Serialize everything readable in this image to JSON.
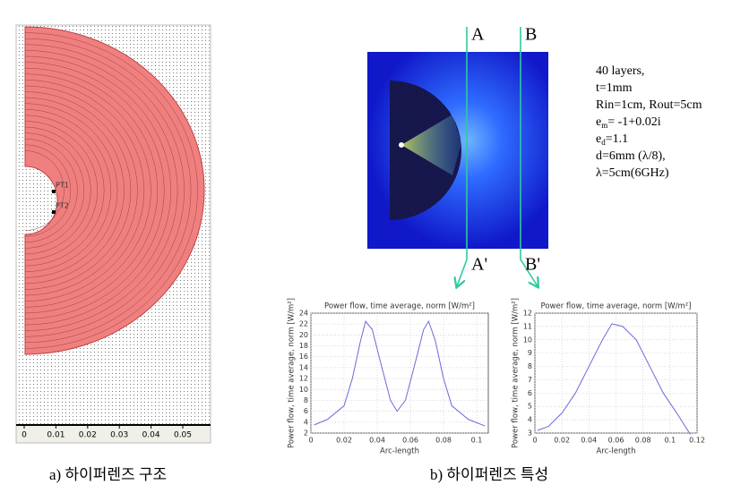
{
  "figure": {
    "geometry": {
      "points": [
        "PT1",
        "PT2"
      ],
      "xticks": [
        0,
        0.01,
        0.02,
        0.03,
        0.04,
        0.05
      ]
    },
    "section_labels": [
      "A",
      "B",
      "A'",
      "B'"
    ],
    "parameters": [
      {
        "text": "40 layers,"
      },
      {
        "text": "t=1mm"
      },
      {
        "text": "Rin=1cm, Rout=5cm"
      },
      {
        "text": "e",
        "sub": "m",
        "rest": "= -1+0.02i"
      },
      {
        "text": "e",
        "sub": "d",
        "rest": "=1.1"
      },
      {
        "text": "d=6mm (λ/8),"
      },
      {
        "text": "λ=5cm(6GHz)"
      }
    ],
    "captions": [
      "a) 하이퍼렌즈 구조",
      "b) 하이퍼렌즈 특성"
    ]
  },
  "chart_data": [
    {
      "type": "line",
      "title": "Power flow, time average, norm [W/m²]",
      "ylabel": "Power flow, time average, norm [W/m²]",
      "xlabel": "Arc-length",
      "color": "#6a6ad8",
      "x": [
        0.002,
        0.01,
        0.02,
        0.025,
        0.03,
        0.033,
        0.037,
        0.042,
        0.048,
        0.052,
        0.057,
        0.063,
        0.068,
        0.071,
        0.075,
        0.08,
        0.085,
        0.095,
        0.105
      ],
      "values": [
        3.5,
        4.5,
        7,
        12,
        19,
        22.5,
        21,
        15,
        8,
        6,
        8,
        15,
        21,
        22.5,
        19,
        12,
        7,
        4.5,
        3.3
      ],
      "xlim": [
        0,
        0.107
      ],
      "xticks": [
        0,
        0.02,
        0.04,
        0.06,
        0.08,
        0.1
      ],
      "ylim": [
        2,
        24
      ],
      "yticks": [
        2,
        4,
        6,
        8,
        10,
        12,
        14,
        16,
        18,
        20,
        22,
        24
      ],
      "grid": true
    },
    {
      "type": "line",
      "title": "Power flow, time average, norm [W/m²]",
      "ylabel": "Power flow, time average, norm [W/m²]",
      "xlabel": "Arc-length",
      "color": "#6a6ad8",
      "x": [
        0.002,
        0.01,
        0.02,
        0.03,
        0.04,
        0.05,
        0.057,
        0.065,
        0.075,
        0.085,
        0.095,
        0.105,
        0.115
      ],
      "values": [
        3.2,
        3.5,
        4.5,
        6,
        8,
        10,
        11.2,
        11,
        10,
        8,
        6,
        4.5,
        2.9
      ],
      "xlim": [
        0,
        0.12
      ],
      "xticks": [
        0,
        0.02,
        0.04,
        0.06,
        0.08,
        0.1,
        0.12
      ],
      "ylim": [
        3,
        12
      ],
      "yticks": [
        3,
        4,
        5,
        6,
        7,
        8,
        9,
        10,
        11,
        12
      ],
      "grid": true
    }
  ]
}
